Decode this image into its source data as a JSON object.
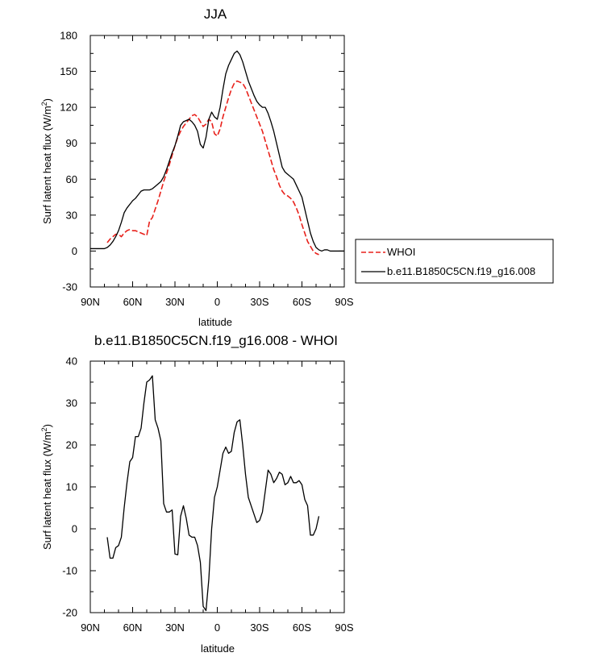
{
  "chart_data": [
    {
      "type": "line",
      "title": "JJA",
      "xlabel": "latitude",
      "ylabel": "Surf latent heat flux (W/m",
      "ylabel_sup": "2",
      "ylabel_end": ")",
      "xlim": [
        90,
        -90
      ],
      "ylim": [
        -30,
        180
      ],
      "x_ticks": [
        90,
        60,
        30,
        0,
        -30,
        -60,
        -90
      ],
      "x_tick_labels": [
        "90N",
        "60N",
        "30N",
        "0",
        "30S",
        "60S",
        "90S"
      ],
      "y_ticks": [
        -30,
        0,
        30,
        60,
        90,
        120,
        150,
        180
      ],
      "y_tick_labels": [
        "-30",
        "0",
        "30",
        "60",
        "90",
        "120",
        "150",
        "180"
      ],
      "legend": {
        "placement": "right",
        "entries": [
          "WHOI",
          "b.e11.B1850C5CN.f19_g16.008"
        ]
      },
      "series": [
        {
          "name": "WHOI",
          "color": "#e8211b",
          "dash": "dashed",
          "x": [
            78,
            76,
            74,
            72,
            70,
            68,
            66,
            64,
            62,
            60,
            58,
            56,
            54,
            52,
            50,
            48,
            46,
            44,
            42,
            40,
            38,
            36,
            34,
            32,
            30,
            28,
            26,
            24,
            22,
            20,
            18,
            16,
            14,
            12,
            10,
            8,
            6,
            4,
            2,
            0,
            -2,
            -4,
            -6,
            -8,
            -10,
            -12,
            -14,
            -16,
            -18,
            -20,
            -22,
            -24,
            -26,
            -28,
            -30,
            -32,
            -34,
            -36,
            -38,
            -40,
            -42,
            -44,
            -46,
            -48,
            -50,
            -52,
            -54,
            -56,
            -58,
            -60,
            -62,
            -64,
            -66,
            -68,
            -70,
            -72
          ],
          "y": [
            7,
            10,
            12,
            14,
            14,
            12,
            15,
            17,
            18,
            17,
            17,
            16,
            15,
            14,
            13,
            25,
            28,
            35,
            42,
            50,
            58,
            65,
            72,
            80,
            88,
            95,
            100,
            104,
            107,
            110,
            113,
            114,
            112,
            108,
            104,
            106,
            110,
            108,
            98,
            96,
            102,
            112,
            120,
            128,
            135,
            140,
            142,
            141,
            140,
            136,
            130,
            124,
            118,
            112,
            106,
            100,
            92,
            84,
            76,
            68,
            62,
            55,
            50,
            47,
            46,
            44,
            41,
            36,
            30,
            22,
            15,
            8,
            4,
            0,
            -2,
            -3
          ]
        },
        {
          "name": "b.e11.B1850C5CN.f19_g16.008",
          "color": "#000000",
          "dash": "solid",
          "x": [
            90,
            88,
            86,
            84,
            82,
            80,
            78,
            76,
            74,
            72,
            70,
            68,
            66,
            64,
            62,
            60,
            58,
            56,
            54,
            52,
            50,
            48,
            46,
            44,
            42,
            40,
            38,
            36,
            34,
            32,
            30,
            28,
            26,
            24,
            22,
            20,
            18,
            16,
            14,
            12,
            10,
            8,
            6,
            4,
            2,
            0,
            -2,
            -4,
            -6,
            -8,
            -10,
            -12,
            -14,
            -16,
            -18,
            -20,
            -22,
            -24,
            -26,
            -28,
            -30,
            -32,
            -34,
            -36,
            -38,
            -40,
            -42,
            -44,
            -46,
            -48,
            -50,
            -52,
            -54,
            -56,
            -58,
            -60,
            -62,
            -64,
            -66,
            -68,
            -70,
            -72,
            -74,
            -76,
            -78,
            -80,
            -82,
            -84,
            -86,
            -88,
            -90
          ],
          "y": [
            2,
            2,
            2,
            2,
            2,
            2,
            3,
            5,
            8,
            12,
            17,
            24,
            32,
            36,
            39,
            42,
            44,
            47,
            50,
            51,
            51,
            51,
            52,
            54,
            56,
            58,
            62,
            68,
            75,
            82,
            88,
            96,
            105,
            108,
            109,
            110,
            108,
            105,
            100,
            89,
            86,
            95,
            110,
            116,
            112,
            110,
            120,
            135,
            148,
            155,
            160,
            165,
            167,
            164,
            158,
            150,
            142,
            136,
            130,
            125,
            122,
            120,
            120,
            115,
            108,
            100,
            90,
            80,
            70,
            66,
            64,
            62,
            60,
            55,
            50,
            45,
            35,
            25,
            15,
            8,
            3,
            1,
            0,
            1,
            1,
            0,
            0,
            0,
            0,
            0,
            0
          ]
        }
      ]
    },
    {
      "type": "line",
      "title": "b.e11.B1850C5CN.f19_g16.008 - WHOI",
      "xlabel": "latitude",
      "ylabel": "Surf latent heat flux (W/m",
      "ylabel_sup": "2",
      "ylabel_end": ")",
      "xlim": [
        90,
        -90
      ],
      "ylim": [
        -20,
        40
      ],
      "x_ticks": [
        90,
        60,
        30,
        0,
        -30,
        -60,
        -90
      ],
      "x_tick_labels": [
        "90N",
        "60N",
        "30N",
        "0",
        "30S",
        "60S",
        "90S"
      ],
      "y_ticks": [
        -20,
        -10,
        0,
        10,
        20,
        30,
        40
      ],
      "y_tick_labels": [
        "-20",
        "-10",
        "0",
        "10",
        "20",
        "30",
        "40"
      ],
      "series": [
        {
          "color": "#000000",
          "dash": "solid",
          "x": [
            78,
            76,
            74,
            72,
            70,
            68,
            66,
            64,
            62,
            60,
            58,
            56,
            54,
            52,
            50,
            48,
            46,
            44,
            42,
            40,
            38,
            36,
            34,
            32,
            30,
            28,
            26,
            24,
            22,
            20,
            18,
            16,
            14,
            12,
            10,
            8,
            6,
            4,
            2,
            0,
            -2,
            -4,
            -6,
            -8,
            -10,
            -12,
            -14,
            -16,
            -18,
            -20,
            -22,
            -24,
            -26,
            -28,
            -30,
            -32,
            -34,
            -36,
            -38,
            -40,
            -42,
            -44,
            -46,
            -48,
            -50,
            -52,
            -54,
            -56,
            -58,
            -60,
            -62,
            -64,
            -66,
            -68,
            -70,
            -72
          ],
          "y": [
            -2,
            -7,
            -7,
            -4.5,
            -4,
            -2,
            5,
            11,
            16,
            17,
            22,
            22,
            24,
            30,
            35,
            35.5,
            36.5,
            26,
            24,
            21,
            6,
            4,
            4,
            4.5,
            -6,
            -6.2,
            3,
            5.5,
            2.5,
            -1.5,
            -2,
            -2,
            -4,
            -8,
            -18.5,
            -19.5,
            -12,
            0,
            7.5,
            10,
            14,
            18,
            19.5,
            18,
            18.5,
            23,
            25.5,
            26,
            20,
            13,
            7.5,
            5.5,
            3.5,
            1.5,
            2,
            4,
            9,
            14,
            13,
            11,
            12,
            13.5,
            13,
            10.5,
            11,
            12.5,
            11,
            11,
            11.5,
            10.5,
            7,
            5.5,
            -1.5,
            -1.5,
            0,
            3
          ]
        }
      ]
    }
  ]
}
